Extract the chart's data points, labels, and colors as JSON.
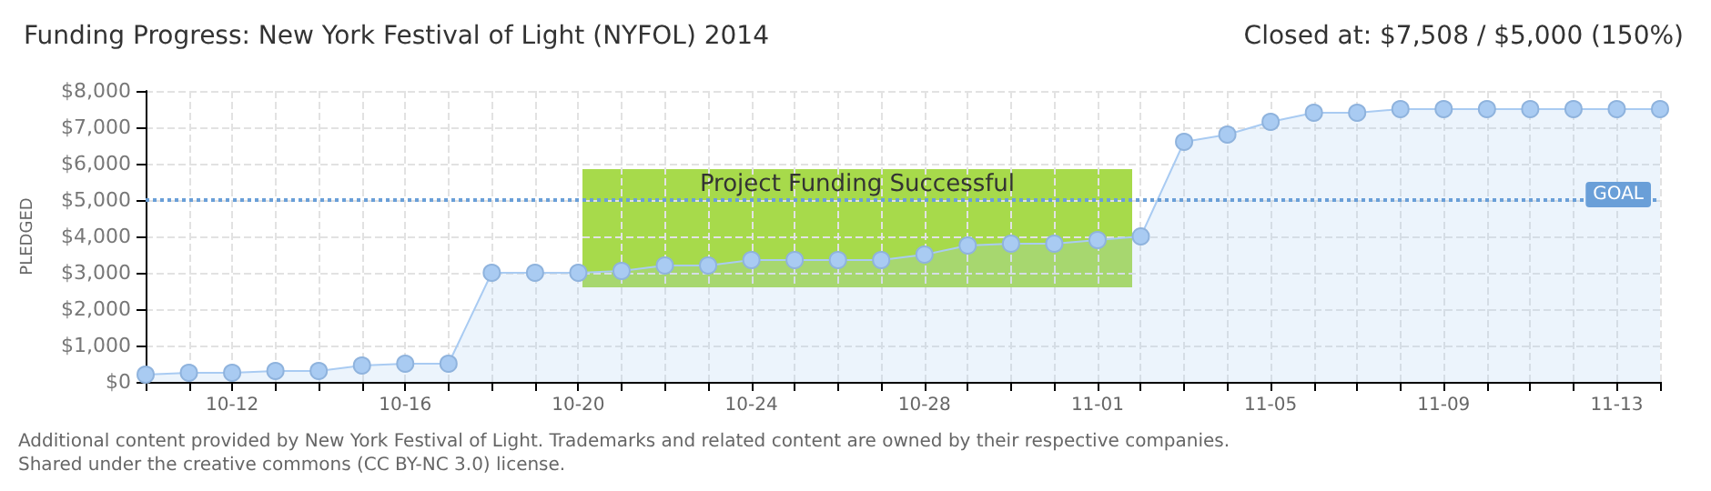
{
  "chart_data": {
    "type": "area",
    "title": "Funding Progress: New York Festival of Light (NYFOL) 2014",
    "subtitle": "Closed at: $7,508 / $5,000 (150%)",
    "ylabel": "PLEDGED",
    "annotations": [
      "Project Funding Successful",
      "Additional content provided by New York Festival of Light. Trademarks and related content are owned by their respective companies.",
      "Shared under the creative commons (CC BY-NC 3.0) license."
    ],
    "categories": [
      null,
      null,
      "10-12",
      null,
      null,
      null,
      "10-16",
      null,
      null,
      null,
      "10-20",
      null,
      null,
      null,
      "10-24",
      null,
      null,
      null,
      "10-28",
      null,
      null,
      null,
      "11-01",
      null,
      null,
      null,
      "11-05",
      null,
      null,
      null,
      "11-09",
      null,
      null,
      null,
      "11-13",
      null
    ],
    "series": [
      {
        "color": "#a9cbf2",
        "values": [
          200,
          250,
          250,
          300,
          300,
          450,
          500,
          500,
          3000,
          3000,
          3000,
          3050,
          3200,
          3200,
          3350,
          3350,
          3350,
          3350,
          3500,
          3750,
          3800,
          3800,
          3900,
          4000,
          6600,
          6800,
          7150,
          7400,
          7400,
          7500,
          7500,
          7500,
          7500,
          7500,
          7500,
          7500
        ]
      }
    ],
    "ylim": [
      0,
      8000
    ],
    "yticks": [
      {
        "value": 0,
        "label": "$0"
      },
      {
        "value": 1000,
        "label": "$1,000"
      },
      {
        "value": 2000,
        "label": "$2,000"
      },
      {
        "value": 3000,
        "label": "$3,000"
      },
      {
        "value": 4000,
        "label": "$4,000"
      },
      {
        "value": 5000,
        "label": "$5,000"
      },
      {
        "value": 6000,
        "label": "$6,000"
      },
      {
        "value": 7000,
        "label": "$7,000"
      },
      {
        "value": 8000,
        "label": "$8,000"
      }
    ],
    "ref_lines": [
      {
        "axis": "y",
        "value": 5000,
        "label": "GOAL",
        "color": "#6a9fd8",
        "line_style": "dotted"
      }
    ],
    "grid": true,
    "marker": "circle",
    "line_style": "solid"
  }
}
